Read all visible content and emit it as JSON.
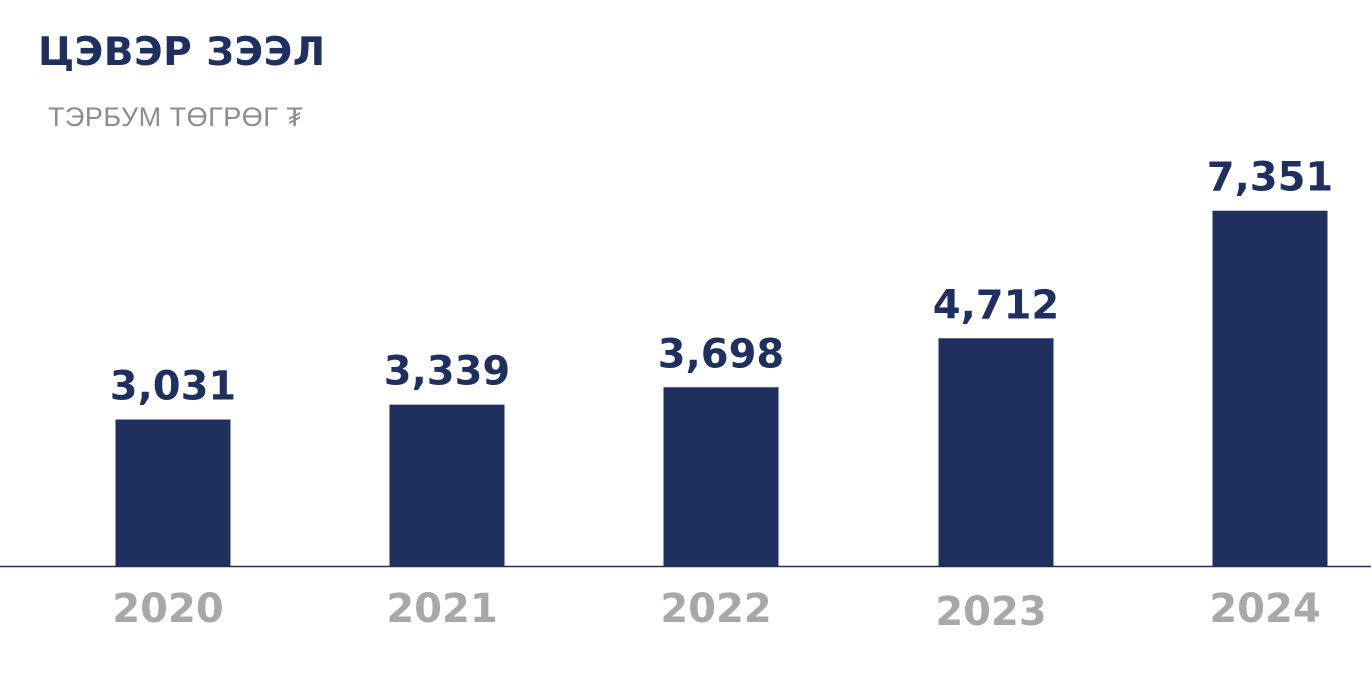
{
  "chart_data": {
    "type": "bar",
    "title": "ЦЭВЭР ЗЭЭЛ",
    "subtitle": "ТЭРБУМ ТӨГРӨГ ₮",
    "categories": [
      "2020",
      "2021",
      "2022",
      "2023",
      "2024"
    ],
    "values": [
      3031,
      3339,
      3698,
      4712,
      7351
    ],
    "value_labels": [
      "3,031",
      "3,339",
      "3,698",
      "4,712",
      "7,351"
    ],
    "xlabel": "",
    "ylabel": "",
    "ylim": [
      0,
      8000
    ],
    "grid": false,
    "legend": "none"
  },
  "colors": {
    "bar": "#1f2f5e",
    "title": "#1f2f5e",
    "value_label": "#1f2f5e",
    "subtitle": "#8c8c8c",
    "tick_label": "#a8a8a8",
    "axis": "#1f2f5e"
  }
}
